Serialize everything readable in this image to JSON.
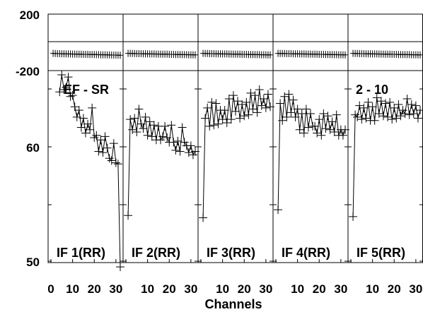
{
  "chart_data": {
    "type": "line",
    "xlabel": "Channels",
    "x_ticks": [
      "0",
      "10",
      "20",
      "30"
    ],
    "xlim": [
      0,
      32
    ],
    "phase_panel": {
      "y_ticks": [
        "200",
        "-200"
      ],
      "ylim": [
        -200,
        200
      ]
    },
    "amp_panel": {
      "y_ticks": [
        "60",
        "50"
      ]
    },
    "annotations": [
      "EF - SR",
      "2 - 10"
    ],
    "x": [
      1,
      2,
      3,
      4,
      5,
      6,
      7,
      8,
      9,
      10,
      11,
      12,
      13,
      14,
      15,
      16,
      17,
      18,
      19,
      20,
      21,
      22,
      23,
      24,
      25,
      26,
      27,
      28,
      29,
      30,
      31,
      32
    ],
    "series": [
      {
        "name": "IF 1(RR)",
        "phase": [
          -78,
          -79,
          -80,
          -80,
          -81,
          -81,
          -82,
          -82,
          -82,
          -83,
          -83,
          -84,
          -84,
          -84,
          -85,
          -85,
          -85,
          -86,
          -86,
          -86,
          -87,
          -87,
          -88,
          -88,
          -88,
          -89,
          -89,
          -90,
          -90,
          -90,
          -91,
          -91
        ],
        "amp": [
          null,
          null,
          null,
          64.8,
          66.3,
          65.0,
          65.2,
          66.1,
          64.4,
          64.5,
          63.5,
          62.6,
          63.2,
          61.7,
          62.5,
          61.2,
          62.0,
          61.5,
          63.4,
          60.8,
          61.0,
          59.6,
          60.6,
          59.5,
          60.9,
          59.9,
          59.0,
          58.8,
          60.3,
          58.6,
          58.5,
          49.5
        ]
      },
      {
        "name": "IF 2(RR)",
        "phase": [
          -78,
          -78,
          -79,
          -79,
          -80,
          -80,
          -80,
          -81,
          -81,
          -81,
          -82,
          -82,
          -82,
          -83,
          -83,
          -83,
          -84,
          -84,
          -84,
          -85,
          -85,
          -85,
          -86,
          -86,
          -86,
          -87,
          -87,
          -87,
          -88,
          -88,
          -88,
          -89
        ],
        "amp": [
          54.0,
          62.4,
          61.5,
          62.5,
          61.3,
          63.3,
          62.0,
          61.6,
          62.6,
          61.0,
          62.2,
          60.9,
          61.9,
          60.6,
          61.8,
          60.6,
          60.9,
          61.8,
          60.8,
          60.4,
          61.9,
          60.4,
          59.7,
          60.5,
          59.6,
          61.7,
          60.4,
          60.1,
          59.5,
          60.1,
          59.3,
          59.6
        ]
      },
      {
        "name": "IF 3(RR)",
        "phase": [
          -78,
          -79,
          -79,
          -80,
          -80,
          -80,
          -81,
          -81,
          -81,
          -82,
          -82,
          -82,
          -83,
          -83,
          -83,
          -84,
          -84,
          -84,
          -85,
          -85,
          -85,
          -86,
          -86,
          -86,
          -87,
          -87,
          -87,
          -88,
          -88,
          -88,
          -89,
          -89
        ],
        "amp": [
          53.8,
          62.5,
          63.4,
          61.8,
          63.9,
          61.9,
          63.8,
          62.0,
          63.2,
          62.4,
          63.2,
          62.1,
          64.2,
          62.4,
          64.5,
          63.1,
          64.0,
          62.5,
          63.7,
          62.7,
          63.9,
          62.8,
          64.7,
          63.3,
          64.5,
          63.0,
          65.0,
          63.6,
          64.2,
          63.4,
          64.6,
          63.5
        ]
      },
      {
        "name": "IF 4(RR)",
        "phase": [
          -78,
          -79,
          -79,
          -79,
          -80,
          -80,
          -80,
          -81,
          -81,
          -81,
          -82,
          -82,
          -82,
          -83,
          -83,
          -83,
          -84,
          -84,
          -84,
          -85,
          -85,
          -85,
          -86,
          -86,
          -86,
          -87,
          -87,
          -87,
          -88,
          -88,
          -88,
          -89
        ],
        "amp": [
          54.5,
          63.8,
          62.3,
          64.4,
          62.6,
          64.6,
          63.0,
          64.1,
          62.6,
          63.3,
          61.5,
          62.9,
          61.2,
          63.3,
          61.7,
          62.9,
          61.8,
          61.8,
          61.2,
          62.4,
          61.0,
          62.9,
          61.6,
          62.7,
          61.5,
          62.2,
          61.3,
          62.8,
          61.0,
          61.5,
          61.0,
          61.5
        ]
      },
      {
        "name": "IF 5(RR)",
        "phase": [
          -78,
          -79,
          -79,
          -80,
          -80,
          -80,
          -81,
          -81,
          -81,
          -82,
          -82,
          -82,
          -83,
          -83,
          -83,
          -84,
          -84,
          -84,
          -85,
          -85,
          -85,
          -86,
          -86,
          -86,
          -87,
          -87,
          -87,
          -88,
          -88,
          -88,
          -89,
          -89
        ],
        "amp": [
          53.9,
          62.8,
          62.6,
          63.6,
          62.4,
          63.4,
          62.5,
          63.9,
          62.3,
          63.5,
          62.3,
          64.3,
          62.9,
          64.0,
          62.7,
          63.8,
          62.6,
          63.9,
          62.4,
          63.4,
          62.5,
          63.7,
          62.7,
          63.2,
          62.9,
          64.2,
          62.8,
          63.7,
          62.9,
          63.6,
          62.5,
          63.2
        ]
      }
    ]
  }
}
